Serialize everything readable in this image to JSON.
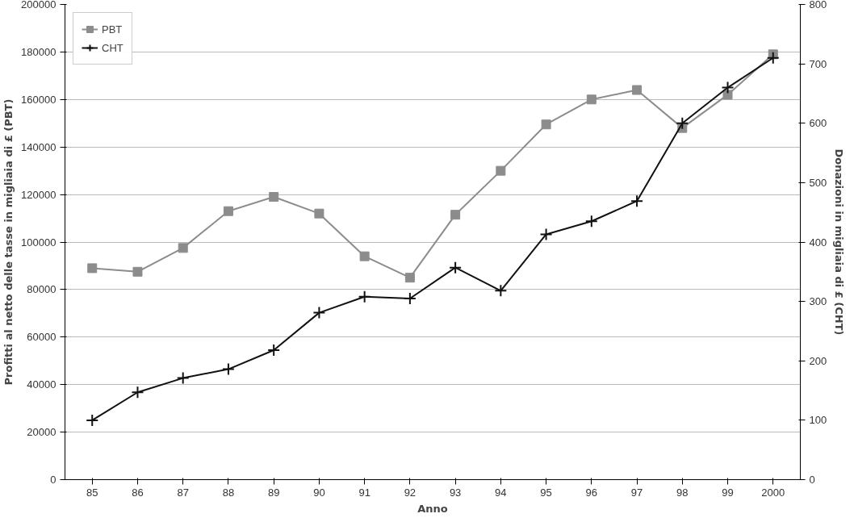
{
  "chart_data": {
    "type": "line",
    "xlabel": "Anno",
    "ylabel": "Profitti al netto delle tasse in migliaia di £ (PBT)",
    "y2label": "Donazioni in migliaia di £ (CHT)",
    "categories": [
      "85",
      "86",
      "87",
      "88",
      "89",
      "90",
      "91",
      "92",
      "93",
      "94",
      "95",
      "96",
      "97",
      "98",
      "99",
      "2000"
    ],
    "series": [
      {
        "name": "PBT",
        "color": "#8c8c8c",
        "marker": "square",
        "values": [
          89000,
          87500,
          97500,
          113000,
          119000,
          112000,
          94000,
          85000,
          111500,
          130000,
          149500,
          160000,
          164000,
          148000,
          162000,
          179000
        ]
      },
      {
        "name": "CHT",
        "color": "#111111",
        "marker": "cross",
        "axis": "y2",
        "values": [
          100,
          147,
          171,
          186,
          218,
          281,
          308,
          305,
          357,
          318,
          413,
          435,
          469,
          600,
          660,
          710
        ]
      }
    ],
    "ylim": [
      0,
      200000
    ],
    "yticks": [
      0,
      20000,
      40000,
      60000,
      80000,
      100000,
      120000,
      140000,
      160000,
      180000,
      200000
    ],
    "y2lim": [
      0,
      800
    ],
    "y2ticks": [
      0,
      100,
      200,
      300,
      400,
      500,
      600,
      700,
      800
    ],
    "grid": "y",
    "legend": "top left",
    "line_style": "solid"
  }
}
